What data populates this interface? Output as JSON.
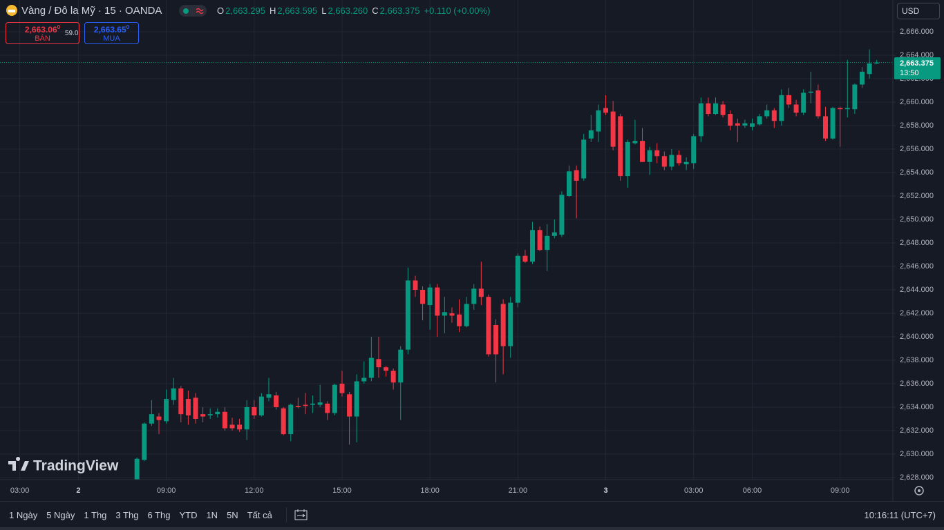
{
  "header": {
    "symbol": "Vàng / Đô la Mỹ · 15 · OANDA",
    "ohlc": [
      {
        "key": "O",
        "value": "2,663.295"
      },
      {
        "key": "H",
        "value": "2,663.595"
      },
      {
        "key": "L",
        "value": "2,663.260"
      },
      {
        "key": "C",
        "value": "2,663.375"
      }
    ],
    "change": "+0.110 (+0.00%)"
  },
  "bid": {
    "price": "2,663.06",
    "price_small": "0",
    "label": "BÁN"
  },
  "spread": "59.0",
  "ask": {
    "price": "2,663.65",
    "price_small": "0",
    "label": "MUA"
  },
  "currency": "USD",
  "last_price": {
    "label": "2,663.375",
    "countdown": "13:50"
  },
  "watermark": "TradingView",
  "toolbar": {
    "ranges": [
      "1 Ngày",
      "5 Ngày",
      "1 Thg",
      "3 Thg",
      "6 Thg",
      "YTD",
      "1N",
      "5N",
      "Tất cả"
    ],
    "clock": "10:16:11 (UTC+7)"
  },
  "chart_data": {
    "type": "candlestick",
    "up_color": "#089981",
    "down_color": "#f23645",
    "grid": true,
    "xlim": [
      -18.7,
      103.2
    ],
    "xticks": [
      {
        "value": -16,
        "label": "03:00"
      },
      {
        "value": -8,
        "label": "2"
      },
      {
        "value": 4,
        "label": "09:00"
      },
      {
        "value": 16,
        "label": "12:00"
      },
      {
        "value": 28,
        "label": "15:00"
      },
      {
        "value": 40,
        "label": "18:00"
      },
      {
        "value": 52,
        "label": "21:00"
      },
      {
        "value": 64,
        "label": "3"
      },
      {
        "value": 76,
        "label": "03:00"
      },
      {
        "value": 84,
        "label": "06:00"
      },
      {
        "value": 96,
        "label": "09:00"
      }
    ],
    "ylim": [
      2627.82,
      2668.71
    ],
    "yticks": [
      {
        "value": 2628,
        "label": "2,628.000"
      },
      {
        "value": 2630,
        "label": "2,630.000"
      },
      {
        "value": 2632,
        "label": "2,632.000"
      },
      {
        "value": 2634,
        "label": "2,634.000"
      },
      {
        "value": 2636,
        "label": "2,636.000"
      },
      {
        "value": 2638,
        "label": "2,638.000"
      },
      {
        "value": 2640,
        "label": "2,640.000"
      },
      {
        "value": 2642,
        "label": "2,642.000"
      },
      {
        "value": 2644,
        "label": "2,644.000"
      },
      {
        "value": 2646,
        "label": "2,646.000"
      },
      {
        "value": 2648,
        "label": "2,648.000"
      },
      {
        "value": 2650,
        "label": "2,650.000"
      },
      {
        "value": 2652,
        "label": "2,652.000"
      },
      {
        "value": 2654,
        "label": "2,654.000"
      },
      {
        "value": 2656,
        "label": "2,656.000"
      },
      {
        "value": 2658,
        "label": "2,658.000"
      },
      {
        "value": 2660,
        "label": "2,660.000"
      },
      {
        "value": 2662,
        "label": "2,662.000"
      },
      {
        "value": 2664,
        "label": "2,664.000"
      },
      {
        "value": 2666,
        "label": "2,666.000"
      }
    ],
    "open": [
      2627.7,
      2629.5,
      2632.6,
      2633.2,
      2632.8,
      2634.6,
      2635.6,
      2634.7,
      2634.8,
      2633.4,
      2633.3,
      2633.4,
      2633.6,
      2632.5,
      2632.5,
      2632.1,
      2634.0,
      2633.3,
      2634.8,
      2635.0,
      2633.9,
      2631.7,
      2634.1,
      2634.2,
      2634.2,
      2634.2,
      2634.3,
      2633.5,
      2636.0,
      2635.1,
      2633.2,
      2636.2,
      2636.5,
      2638.1,
      2637.4,
      2637.1,
      2636.1,
      2638.9,
      2644.8,
      2644.0,
      2642.7,
      2644.2,
      2641.8,
      2642.0,
      2641.9,
      2640.9,
      2642.8,
      2644.1,
      2643.4,
      2641.0,
      2642.8,
      2639.2,
      2642.9,
      2646.9,
      2646.4,
      2649.1,
      2647.4,
      2648.6,
      2648.7,
      2652.0,
      2654.2,
      2653.5,
      2656.9,
      2657.5,
      2659.5,
      2659.2,
      2658.8,
      2653.7,
      2656.5,
      2656.7,
      2654.9,
      2655.9,
      2655.4,
      2654.5,
      2655.5,
      2654.7,
      2654.8,
      2657.1,
      2659.9,
      2659.0,
      2659.8,
      2659.0,
      2658.2,
      2658.0,
      2657.9,
      2658.1,
      2658.8,
      2659.3,
      2658.4,
      2660.6,
      2659.8,
      2659.1,
      2660.8,
      2661.0,
      2658.8,
      2656.9,
      2659.5,
      2659.4,
      2659.4,
      2661.5,
      2662.4,
      2663.295
    ],
    "high": [
      2629.7,
      2632.7,
      2634.6,
      2633.5,
      2635.5,
      2636.5,
      2635.8,
      2635.4,
      2635.2,
      2634.0,
      2633.9,
      2633.9,
      2634.0,
      2633.1,
      2633.0,
      2634.6,
      2634.6,
      2635.2,
      2636.5,
      2635.3,
      2634.0,
      2634.3,
      2634.8,
      2635.2,
      2635.0,
      2635.9,
      2634.5,
      2636.0,
      2637.1,
      2635.3,
      2636.8,
      2637.9,
      2640.0,
      2640.0,
      2637.5,
      2637.3,
      2639.2,
      2645.9,
      2645.2,
      2644.3,
      2644.5,
      2644.5,
      2643.4,
      2642.5,
      2643.2,
      2643.4,
      2644.5,
      2646.4,
      2643.6,
      2641.5,
      2643.2,
      2643.4,
      2647.1,
      2647.4,
      2649.8,
      2649.4,
      2649.6,
      2650.0,
      2652.4,
      2654.6,
      2654.6,
      2657.3,
      2658.9,
      2659.8,
      2660.6,
      2660.1,
      2659.0,
      2656.8,
      2658.5,
      2657.8,
      2656.2,
      2656.5,
      2655.8,
      2656.0,
      2655.9,
      2655.3,
      2657.3,
      2660.4,
      2660.4,
      2660.4,
      2660.1,
      2659.3,
      2658.6,
      2658.5,
      2658.6,
      2659.0,
      2659.8,
      2659.5,
      2661.1,
      2661.2,
      2660.2,
      2661.1,
      2662.6,
      2661.5,
      2659.6,
      2659.6,
      2659.6,
      2663.6,
      2661.6,
      2663.0,
      2664.5,
      2663.595
    ],
    "low": [
      2627.5,
      2629.4,
      2632.4,
      2631.7,
      2632.6,
      2634.2,
      2632.7,
      2632.5,
      2632.6,
      2632.7,
      2633.0,
      2633.1,
      2632.0,
      2632.0,
      2631.9,
      2631.2,
      2633.0,
      2633.2,
      2634.5,
      2633.8,
      2631.6,
      2631.1,
      2633.9,
      2633.4,
      2633.5,
      2634.0,
      2632.9,
      2633.3,
      2634.9,
      2630.8,
      2631.0,
      2636.0,
      2636.2,
      2636.5,
      2636.6,
      2635.5,
      2632.9,
      2638.5,
      2643.4,
      2641.4,
      2640.6,
      2640.0,
      2640.3,
      2641.2,
      2640.4,
      2640.8,
      2642.3,
      2642.7,
      2638.3,
      2636.1,
      2636.8,
      2638.2,
      2642.5,
      2646.3,
      2646.2,
      2647.3,
      2645.6,
      2648.4,
      2648.5,
      2651.9,
      2650.1,
      2653.3,
      2656.6,
      2656.6,
      2658.9,
      2655.9,
      2653.3,
      2652.7,
      2656.4,
      2654.9,
      2653.8,
      2654.8,
      2654.2,
      2654.2,
      2654.6,
      2654.2,
      2654.3,
      2656.6,
      2658.8,
      2658.9,
      2658.7,
      2657.6,
      2656.6,
      2657.8,
      2657.6,
      2658.0,
      2658.6,
      2657.8,
      2658.0,
      2659.5,
      2658.8,
      2658.9,
      2659.9,
      2658.6,
      2656.7,
      2656.8,
      2656.2,
      2658.7,
      2659.0,
      2661.2,
      2662.0,
      2663.26
    ],
    "close": [
      2629.6,
      2632.6,
      2633.4,
      2632.9,
      2634.7,
      2635.6,
      2633.4,
      2633.3,
      2633.0,
      2633.2,
      2633.4,
      2633.6,
      2632.2,
      2632.2,
      2632.1,
      2634.0,
      2633.3,
      2634.9,
      2635.1,
      2634.0,
      2631.7,
      2634.2,
      2634.0,
      2634.1,
      2634.3,
      2634.4,
      2633.5,
      2635.9,
      2635.2,
      2633.2,
      2636.2,
      2636.5,
      2638.2,
      2637.4,
      2637.1,
      2636.1,
      2638.9,
      2644.8,
      2644.0,
      2642.8,
      2644.2,
      2641.8,
      2642.1,
      2641.8,
      2640.9,
      2642.8,
      2644.1,
      2643.4,
      2638.5,
      2638.5,
      2639.2,
      2642.9,
      2646.9,
      2646.4,
      2649.1,
      2647.4,
      2648.6,
      2648.9,
      2652.1,
      2654.1,
      2653.3,
      2656.8,
      2657.6,
      2659.3,
      2659.1,
      2656.2,
      2653.7,
      2656.6,
      2656.7,
      2654.9,
      2655.9,
      2655.4,
      2654.5,
      2655.5,
      2654.8,
      2654.9,
      2657.1,
      2659.9,
      2659.0,
      2659.9,
      2658.9,
      2658.0,
      2658.0,
      2658.2,
      2658.2,
      2658.8,
      2659.3,
      2658.4,
      2660.6,
      2659.8,
      2659.1,
      2660.8,
      2660.9,
      2658.8,
      2656.9,
      2659.5,
      2659.4,
      2659.5,
      2661.5,
      2662.6,
      2663.3,
      2663.375
    ]
  }
}
